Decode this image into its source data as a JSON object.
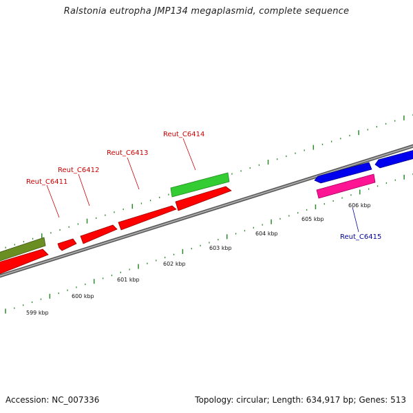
{
  "title": "Ralstonia eutropha JMP134 megaplasmid, complete sequence",
  "footer": {
    "accession": "Accession: NC_007336",
    "stats": "Topology: circular; Length: 634,917 bp; Genes: 513"
  },
  "scale_labels": [
    "599 kbp",
    "600 kbp",
    "601 kbp",
    "602 kbp",
    "603 kbp",
    "604 kbp",
    "605 kbp",
    "606 kbp"
  ],
  "gene_labels": [
    {
      "name": "Reut_C6411",
      "color": "#cc0000"
    },
    {
      "name": "Reut_C6412",
      "color": "#cc0000"
    },
    {
      "name": "Reut_C6413",
      "color": "#cc0000"
    },
    {
      "name": "Reut_C6414",
      "color": "#cc0000"
    },
    {
      "name": "Reut_C6415",
      "color": "#000099"
    }
  ],
  "colors": {
    "forward_red": "#ff0000",
    "reverse_red": "#ff0000",
    "green": "#33cc33",
    "olive": "#6b8e23",
    "blue": "#0000ee",
    "pink": "#ff1493",
    "backbone": "#888888",
    "ticks": "#2a8a2a"
  }
}
